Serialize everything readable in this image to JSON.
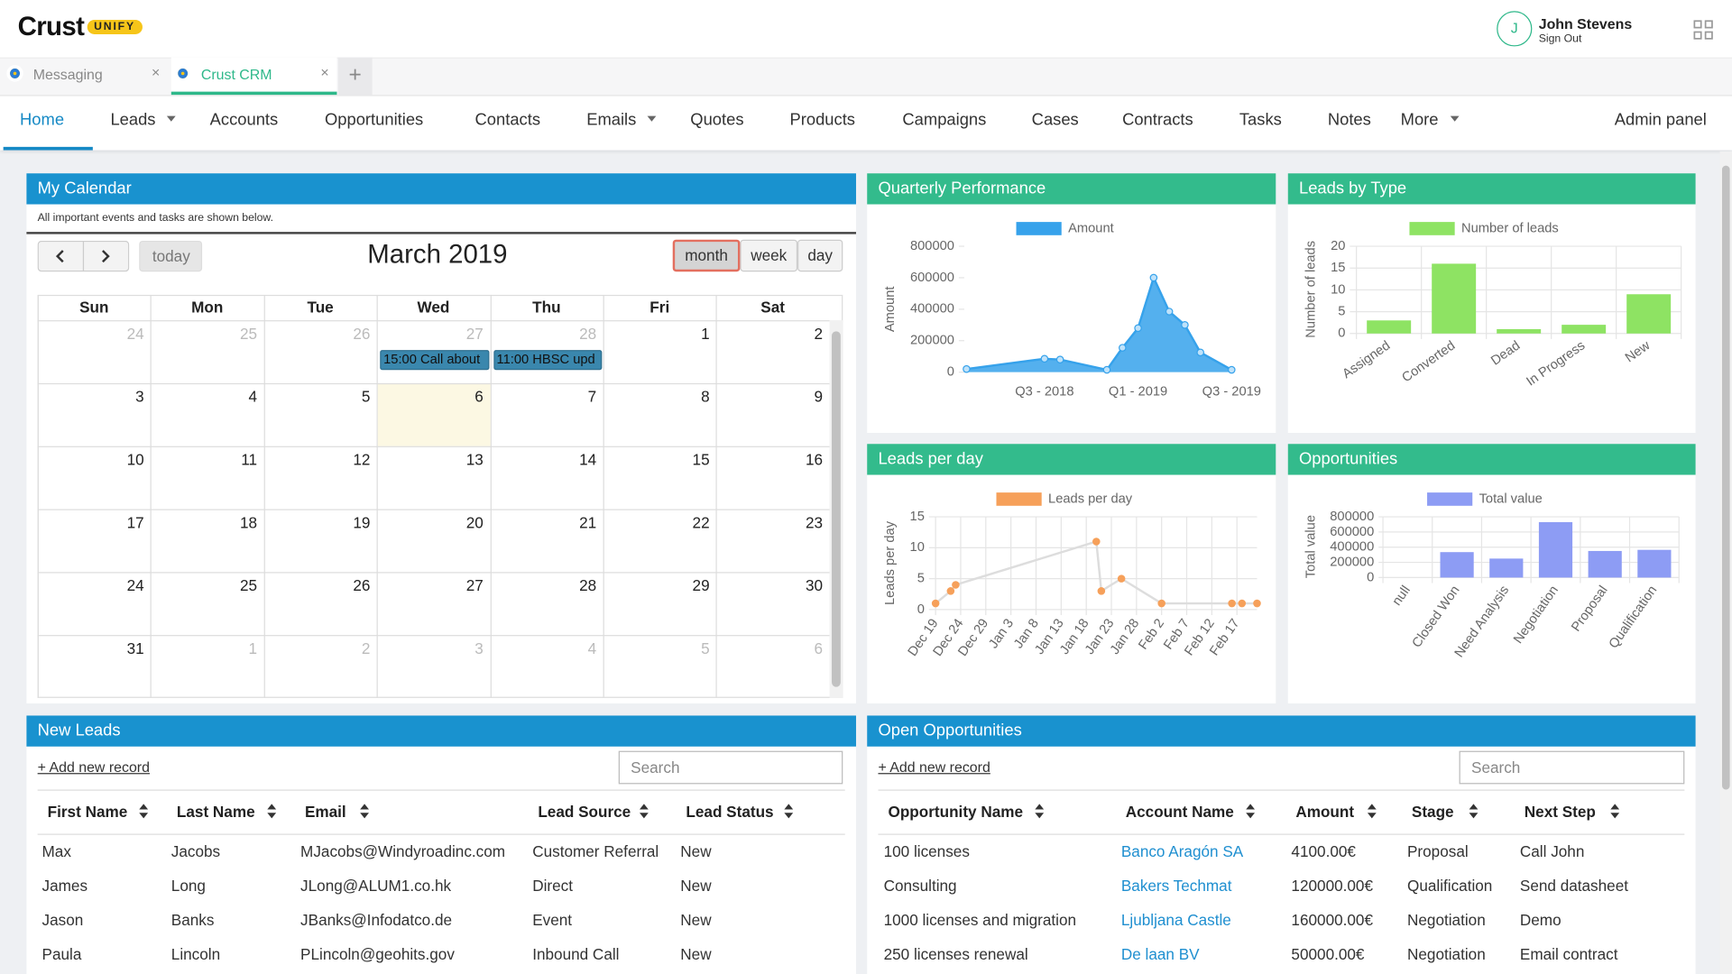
{
  "header": {
    "logo": "Crust",
    "badge": "UNIFY",
    "avatar": "J",
    "user": "John Stevens",
    "sign_out": "Sign Out"
  },
  "tabs": [
    "Messaging",
    "Crust CRM"
  ],
  "nav": [
    "Home",
    "Leads",
    "Accounts",
    "Opportunities",
    "Contacts",
    "Emails",
    "Quotes",
    "Products",
    "Campaigns",
    "Cases",
    "Contracts",
    "Tasks",
    "Notes",
    "More"
  ],
  "admin": "Admin panel",
  "calendar": {
    "title": "My Calendar",
    "note": "All important events and tasks are shown below.",
    "today": "today",
    "month_title": "March 2019",
    "views": [
      "month",
      "week",
      "day"
    ],
    "weekdays": [
      "Sun",
      "Mon",
      "Tue",
      "Wed",
      "Thu",
      "Fri",
      "Sat"
    ],
    "weeks": [
      [
        24,
        25,
        26,
        27,
        28,
        1,
        2
      ],
      [
        3,
        4,
        5,
        6,
        7,
        8,
        9
      ],
      [
        10,
        11,
        12,
        13,
        14,
        15,
        16
      ],
      [
        17,
        18,
        19,
        20,
        21,
        22,
        23
      ],
      [
        24,
        25,
        26,
        27,
        28,
        29,
        30
      ],
      [
        31,
        1,
        2,
        3,
        4,
        5,
        6
      ]
    ],
    "events": [
      "15:00 Call about",
      "11:00 HBSC upd"
    ]
  },
  "chart_data": [
    {
      "type": "line",
      "title": "Quarterly Performance",
      "y_label": "Amount",
      "fill": true,
      "grid": false,
      "span_gaps": true,
      "categories": [
        null,
        null,
        null,
        null,
        null,
        "Q3 - 2018",
        null,
        null,
        null,
        null,
        null,
        "Q1 - 2019",
        null,
        null,
        null,
        null,
        null,
        "Q3 - 2019"
      ],
      "series": [
        {
          "name": "Amount",
          "color": "#36a2eb",
          "values": [
            20000,
            null,
            null,
            null,
            null,
            85000,
            80000,
            null,
            null,
            15000,
            155000,
            280000,
            600000,
            385000,
            300000,
            125000,
            null,
            15000
          ]
        }
      ],
      "ylim": [
        0,
        800000
      ],
      "yticks": [
        0,
        200000,
        400000,
        600000,
        800000
      ]
    },
    {
      "type": "bar",
      "title": "Leads by Type",
      "y_label": "Number of leads",
      "grid": true,
      "categories": [
        "Assigned",
        "Converted",
        "Dead",
        "In Progress",
        "New"
      ],
      "series": [
        {
          "name": "Number of leads",
          "color": "#8ee363",
          "values": [
            3,
            16,
            1,
            2,
            9
          ]
        }
      ],
      "ylim": [
        0,
        20
      ],
      "yticks": [
        0,
        5,
        10,
        15,
        20
      ]
    },
    {
      "type": "line",
      "title": "Leads per day",
      "y_label": "Leads per day",
      "fill": false,
      "grid": true,
      "span_gaps": true,
      "categories": [
        "Dec 19",
        null,
        null,
        null,
        null,
        "Dec 24",
        null,
        null,
        null,
        null,
        "Dec 29",
        null,
        null,
        null,
        null,
        "Jan 3",
        null,
        null,
        null,
        null,
        "Jan 8",
        null,
        null,
        null,
        null,
        "Jan 13",
        null,
        null,
        null,
        null,
        "Jan 18",
        null,
        null,
        null,
        null,
        "Jan 23",
        null,
        null,
        null,
        null,
        "Jan 28",
        null,
        null,
        null,
        null,
        "Feb 2",
        null,
        null,
        null,
        null,
        "Feb 7",
        null,
        null,
        null,
        null,
        "Feb 12",
        null,
        null,
        null,
        null,
        "Feb 17",
        null,
        null,
        null,
        null
      ],
      "series": [
        {
          "name": "Leads per day",
          "color": "#f6a05a",
          "line_color": "#dddddd",
          "values": [
            1,
            null,
            null,
            3,
            4,
            null,
            null,
            null,
            null,
            null,
            null,
            null,
            null,
            null,
            null,
            null,
            null,
            null,
            null,
            null,
            null,
            null,
            null,
            null,
            null,
            null,
            null,
            null,
            null,
            null,
            null,
            null,
            11,
            3,
            null,
            null,
            null,
            5,
            null,
            null,
            null,
            null,
            null,
            null,
            null,
            1,
            null,
            null,
            null,
            null,
            null,
            null,
            null,
            null,
            null,
            null,
            null,
            null,
            null,
            1,
            null,
            1,
            null,
            null,
            1
          ]
        }
      ],
      "ylim": [
        0,
        15
      ],
      "yticks": [
        0,
        5,
        10,
        15
      ]
    },
    {
      "type": "bar",
      "title": "Opportunities",
      "y_label": "Total value",
      "grid": true,
      "categories": [
        "null",
        "Closed Won",
        "Need Analysis",
        "Negotiation",
        "Proposal",
        "Qualification"
      ],
      "series": [
        {
          "name": "Total value",
          "color": "#8d9cf4",
          "values": [
            0,
            335000,
            250000,
            730000,
            350000,
            365000
          ]
        }
      ],
      "ylim": [
        0,
        800000
      ],
      "yticks": [
        0,
        200000,
        400000,
        600000,
        800000
      ]
    }
  ],
  "new_leads": {
    "title": "New Leads",
    "add": "+ Add new record",
    "search": "Search",
    "headers": [
      "First Name",
      "Last Name",
      "Email",
      "Lead Source",
      "Lead Status"
    ],
    "rows": [
      [
        "Max",
        "Jacobs",
        "MJacobs@Windyroadinc.com",
        "Customer Referral",
        "New"
      ],
      [
        "James",
        "Long",
        "JLong@ALUM1.co.hk",
        "Direct",
        "New"
      ],
      [
        "Jason",
        "Banks",
        "JBanks@Infodatco.de",
        "Event",
        "New"
      ],
      [
        "Paula",
        "Lincoln",
        "PLincoln@geohits.gov",
        "Inbound Call",
        "New"
      ]
    ]
  },
  "open_opportunities": {
    "title": "Open Opportunities",
    "add": "+ Add new record",
    "search": "Search",
    "headers": [
      "Opportunity Name",
      "Account Name",
      "Amount",
      "Stage",
      "Next Step"
    ],
    "rows": [
      [
        "100 licenses",
        "Banco Aragón SA",
        "4100.00€",
        "Proposal",
        "Call John"
      ],
      [
        "Consulting",
        "Bakers Techmat",
        "120000.00€",
        "Qualification",
        "Send datasheet"
      ],
      [
        "1000 licenses and migration",
        "Ljubljana Castle",
        "160000.00€",
        "Negotiation",
        "Demo"
      ],
      [
        "250 licenses renewal",
        "De laan BV",
        "50000.00€",
        "Negotiation",
        "Email contract"
      ]
    ]
  }
}
